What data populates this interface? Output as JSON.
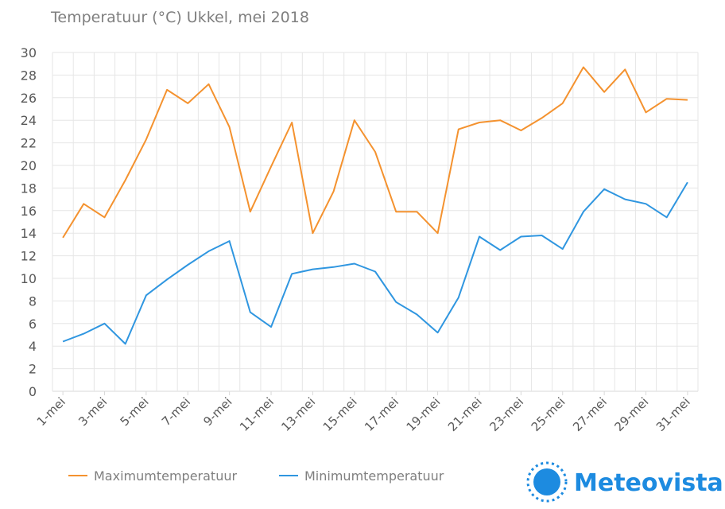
{
  "chart_data": {
    "type": "line",
    "title": "Temperatuur (°C)  Ukkel, mei 2018",
    "ylim": [
      0,
      30
    ],
    "yticks": [
      0,
      2,
      4,
      6,
      8,
      10,
      12,
      14,
      16,
      18,
      20,
      22,
      24,
      26,
      28,
      30
    ],
    "x": [
      "1-mei",
      "2-mei",
      "3-mei",
      "4-mei",
      "5-mei",
      "6-mei",
      "7-mei",
      "8-mei",
      "9-mei",
      "10-mei",
      "11-mei",
      "12-mei",
      "13-mei",
      "14-mei",
      "15-mei",
      "16-mei",
      "17-mei",
      "18-mei",
      "19-mei",
      "20-mei",
      "21-mei",
      "22-mei",
      "23-mei",
      "24-mei",
      "25-mei",
      "26-mei",
      "27-mei",
      "28-mei",
      "29-mei",
      "30-mei",
      "31-mei"
    ],
    "xtick_labels": [
      "1-mei",
      "3-mei",
      "5-mei",
      "7-mei",
      "9-mei",
      "11-mei",
      "13-mei",
      "15-mei",
      "17-mei",
      "19-mei",
      "21-mei",
      "23-mei",
      "25-mei",
      "27-mei",
      "29-mei",
      "31-mei"
    ],
    "grid": true,
    "legend_position": "bottom-left",
    "series": [
      {
        "name": "Maximumtemperatuur",
        "color": "#f4922f",
        "values": [
          13.6,
          16.6,
          15.4,
          18.7,
          22.3,
          26.7,
          25.5,
          27.2,
          23.4,
          15.9,
          19.9,
          23.8,
          14.0,
          17.7,
          24.0,
          21.2,
          15.9,
          15.9,
          14.0,
          23.2,
          23.8,
          24.0,
          23.1,
          24.2,
          25.5,
          28.7,
          26.5,
          28.5,
          24.7,
          25.9,
          25.8
        ]
      },
      {
        "name": "Minimumtemperatuur",
        "color": "#2f96e0",
        "values": [
          4.4,
          5.1,
          6.0,
          4.2,
          8.5,
          9.9,
          11.2,
          12.4,
          13.3,
          7.0,
          5.7,
          10.4,
          10.8,
          11.0,
          11.3,
          10.6,
          7.9,
          6.8,
          5.2,
          8.3,
          13.7,
          12.5,
          13.7,
          13.8,
          12.6,
          15.9,
          17.9,
          17.0,
          16.6,
          15.4,
          18.5
        ]
      }
    ]
  },
  "brand": {
    "name": "Meteovista",
    "color": "#1d8be0",
    "logo_icon": "sun-icon"
  }
}
